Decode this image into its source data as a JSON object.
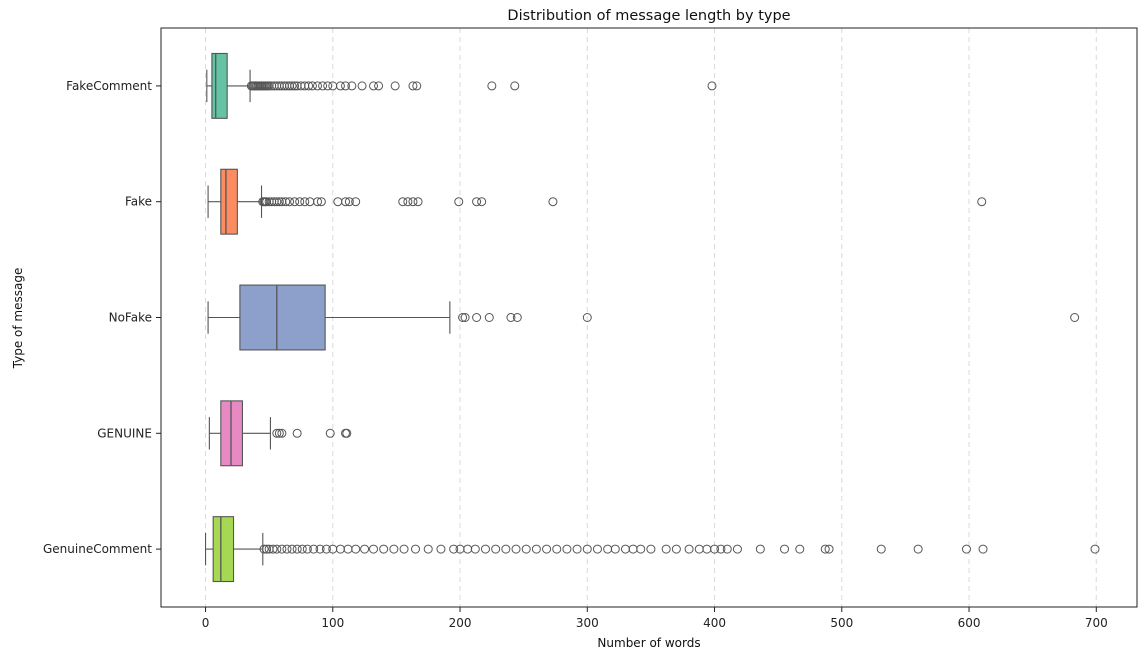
{
  "chart_data": {
    "type": "boxplot",
    "orientation": "horizontal",
    "title": "Distribution of message length by type",
    "xlabel": "Number of words",
    "ylabel": "Type of message",
    "xlim": [
      -35,
      732
    ],
    "xticks": [
      0,
      100,
      200,
      300,
      400,
      500,
      600,
      700
    ],
    "grid": "x-dashed",
    "series": [
      {
        "name": "FakeComment",
        "color": "#66c2a5",
        "whisker_low": 1,
        "q1": 5,
        "median": 8,
        "q3": 17,
        "whisker_high": 35,
        "outliers": [
          36,
          37,
          38,
          39,
          40,
          41,
          42,
          43,
          44,
          45,
          46,
          47,
          48,
          49,
          50,
          52,
          54,
          56,
          58,
          60,
          62,
          64,
          66,
          68,
          70,
          72,
          75,
          78,
          81,
          84,
          88,
          92,
          96,
          100,
          106,
          110,
          115,
          123,
          132,
          136,
          149,
          163,
          166,
          225,
          243,
          398
        ]
      },
      {
        "name": "Fake",
        "color": "#fc8d62",
        "whisker_low": 2,
        "q1": 12,
        "median": 16,
        "q3": 25,
        "whisker_high": 44,
        "outliers": [
          45,
          46,
          47,
          48,
          50,
          52,
          54,
          56,
          58,
          60,
          63,
          66,
          70,
          74,
          78,
          82,
          88,
          91,
          104,
          110,
          113,
          118,
          155,
          159,
          163,
          167,
          199,
          213,
          217,
          273,
          610
        ]
      },
      {
        "name": "NoFake",
        "color": "#8da0cb",
        "whisker_low": 2,
        "q1": 27,
        "median": 56,
        "q3": 94,
        "whisker_high": 192,
        "outliers": [
          202,
          204,
          213,
          223,
          240,
          245,
          300,
          683
        ]
      },
      {
        "name": "GENUINE",
        "color": "#e78ac3",
        "whisker_low": 3,
        "q1": 12,
        "median": 20,
        "q3": 29,
        "whisker_high": 51,
        "outliers": [
          56,
          58,
          60,
          72,
          98,
          110,
          111
        ]
      },
      {
        "name": "GenuineComment",
        "color": "#a6d854",
        "whisker_low": 0,
        "q1": 6,
        "median": 12,
        "q3": 22,
        "whisker_high": 45,
        "outliers": [
          46,
          48,
          50,
          53,
          56,
          60,
          64,
          68,
          72,
          76,
          80,
          85,
          90,
          95,
          100,
          106,
          112,
          118,
          125,
          132,
          140,
          148,
          156,
          165,
          175,
          185,
          195,
          200,
          206,
          212,
          220,
          228,
          236,
          244,
          252,
          260,
          268,
          276,
          284,
          292,
          300,
          308,
          316,
          322,
          330,
          336,
          342,
          350,
          362,
          370,
          380,
          388,
          394,
          400,
          405,
          410,
          418,
          436,
          455,
          467,
          487,
          490,
          531,
          560,
          598,
          611,
          699
        ]
      }
    ]
  }
}
